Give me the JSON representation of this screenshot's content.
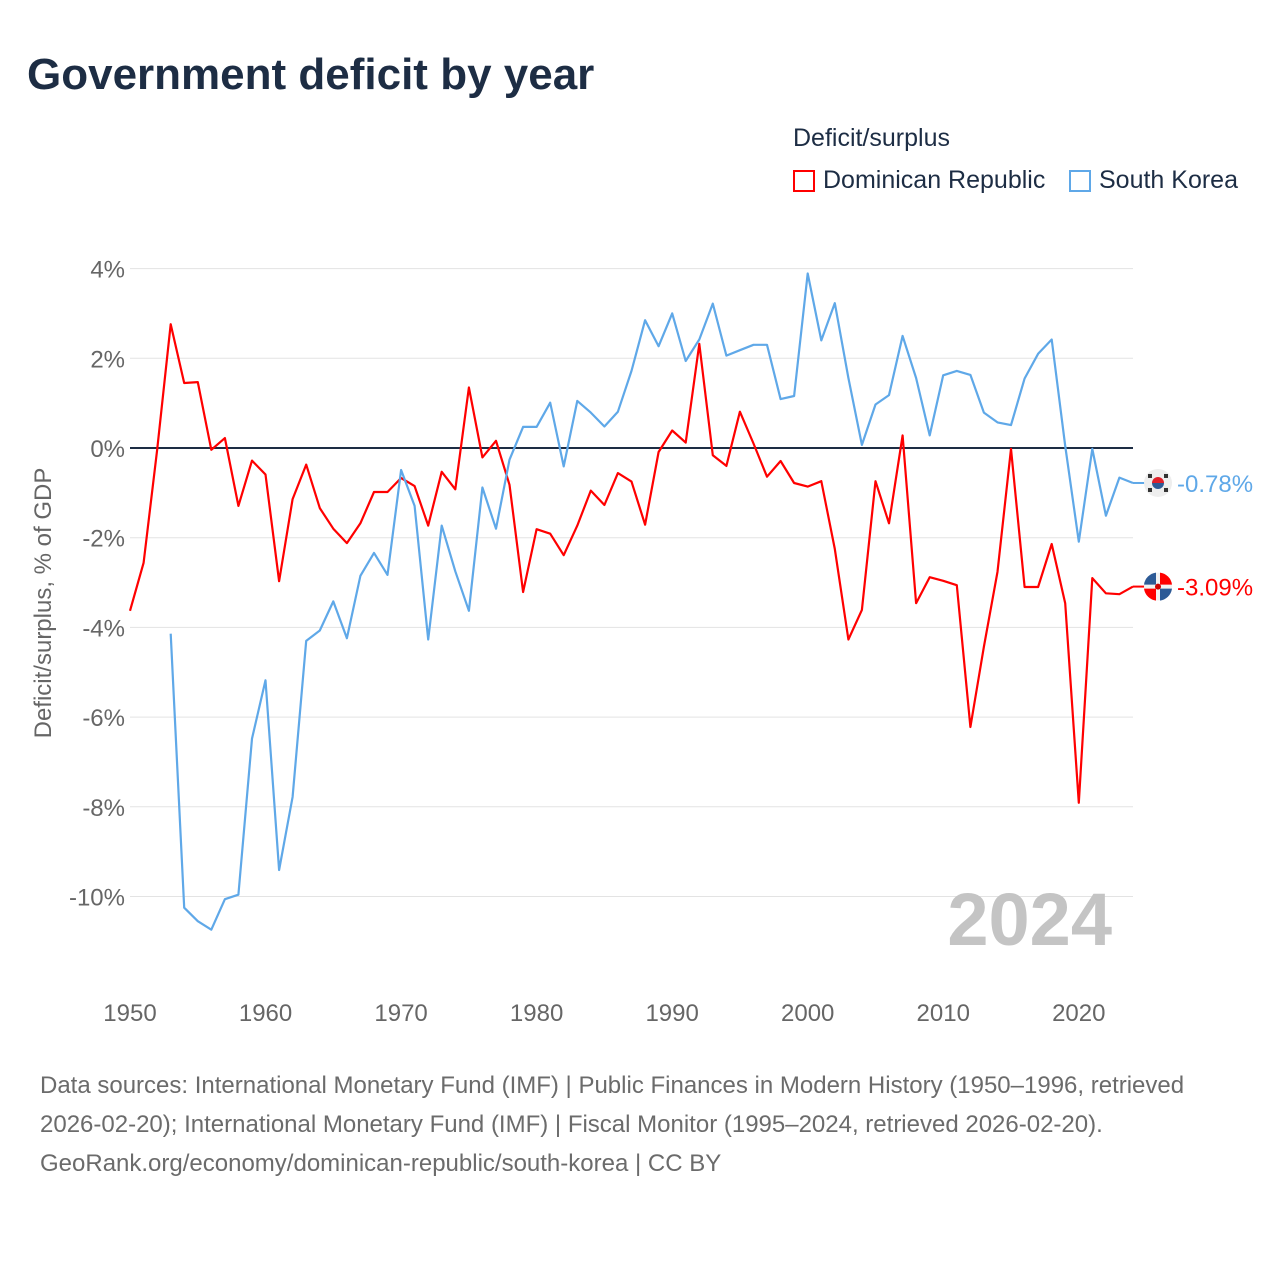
{
  "chart_data": {
    "type": "line",
    "title": "Government deficit by year",
    "legend_title": "Deficit/surplus",
    "legend_placement": "top-right",
    "xlabel": "",
    "ylabel": "Deficit/surplus, % of GDP",
    "xlim": [
      1950,
      2024
    ],
    "ylim": [
      -11.5,
      4.4
    ],
    "x_ticks": [
      1950,
      1960,
      1970,
      1980,
      1990,
      2000,
      2010,
      2020
    ],
    "y_ticks": [
      4,
      2,
      0,
      -2,
      -4,
      -6,
      -8,
      -10
    ],
    "y_tick_labels": [
      "4%",
      "2%",
      "0%",
      "-2%",
      "-4%",
      "-6%",
      "-8%",
      "-10%"
    ],
    "grid": true,
    "year_watermark": "2024",
    "series": [
      {
        "name": "Dominican Republic",
        "color": "#ff0000",
        "end_label": "-3.09%",
        "start_year": 1950,
        "values": [
          -3.63,
          -2.56,
          -0.05,
          2.76,
          1.45,
          1.47,
          -0.04,
          0.22,
          -1.29,
          -0.28,
          -0.59,
          -2.97,
          -1.14,
          -0.37,
          -1.34,
          -1.8,
          -2.12,
          -1.68,
          -0.98,
          -0.98,
          -0.67,
          -0.85,
          -1.73,
          -0.53,
          -0.92,
          1.35,
          -0.21,
          0.16,
          -0.82,
          -3.21,
          -1.81,
          -1.91,
          -2.39,
          -1.73,
          -0.95,
          -1.27,
          -0.56,
          -0.75,
          -1.71,
          -0.09,
          0.39,
          0.12,
          2.32,
          -0.16,
          -0.4,
          0.81,
          0.1,
          -0.64,
          -0.29,
          -0.78,
          -0.86,
          -0.74,
          -2.25,
          -4.27,
          -3.61,
          -0.74,
          -1.68,
          0.28,
          -3.46,
          -2.88,
          -2.96,
          -3.06,
          -6.22,
          -4.43,
          -2.76,
          -0.02,
          -3.1,
          -3.1,
          -2.14,
          -3.46,
          -7.91,
          -2.9,
          -3.24,
          -3.26,
          -3.09
        ]
      },
      {
        "name": "South Korea",
        "color": "#5fa8e8",
        "end_label": "-0.78%",
        "start_year": 1953,
        "values": [
          -4.14,
          -10.25,
          -10.55,
          -10.74,
          -10.06,
          -9.96,
          -6.48,
          -5.18,
          -9.41,
          -7.78,
          -4.3,
          -4.07,
          -3.42,
          -4.24,
          -2.85,
          -2.34,
          -2.83,
          -0.49,
          -1.29,
          -4.27,
          -1.73,
          -2.75,
          -3.63,
          -0.88,
          -1.8,
          -0.26,
          0.47,
          0.47,
          1.01,
          -0.41,
          1.05,
          0.79,
          0.48,
          0.81,
          1.72,
          2.85,
          2.27,
          3.0,
          1.94,
          2.42,
          3.22,
          2.06,
          2.18,
          2.3,
          2.3,
          1.09,
          1.16,
          3.89,
          2.4,
          3.23,
          1.56,
          0.07,
          0.97,
          1.18,
          2.5,
          1.56,
          0.28,
          1.62,
          1.72,
          1.63,
          0.79,
          0.57,
          0.51,
          1.55,
          2.1,
          2.42,
          0.05,
          -2.09,
          -0.02,
          -1.51,
          -0.66,
          -0.78
        ]
      }
    ]
  },
  "footer": {
    "sources": "Data sources: International Monetary Fund (IMF) | Public Finances in Modern History (1950–1996, retrieved 2026-02-20); International Monetary Fund (IMF) | Fiscal Monitor (1995–2024, retrieved 2026-02-20).",
    "credit": "GeoRank.org/economy/dominican-republic/south-korea | CC BY"
  }
}
